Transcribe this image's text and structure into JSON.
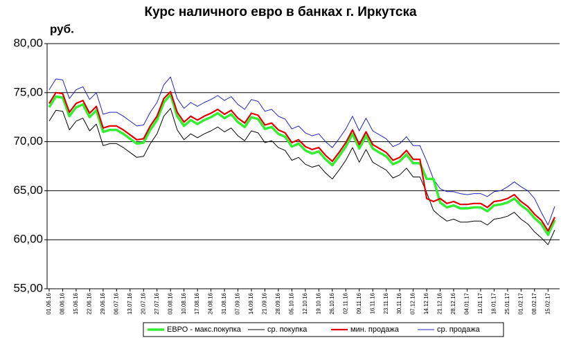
{
  "chart_data": {
    "type": "line",
    "title": "Курс наличного евро в банках г. Иркутска",
    "y_unit": "руб.",
    "categories": [
      "01.06.16",
      null,
      "08.06.16",
      null,
      "15.06.16",
      null,
      "22.06.16",
      null,
      "29.06.16",
      null,
      "06.07.16",
      null,
      "13.07.16",
      null,
      "20.07.16",
      null,
      "27.07.16",
      null,
      "03.08.16",
      null,
      "10.08.16",
      null,
      "17.08.16",
      null,
      "24.08.16",
      null,
      "31.08.16",
      null,
      "07.09.16",
      null,
      "14.09.16",
      null,
      "21.09.16",
      null,
      "28.09.16",
      null,
      "05.10.16",
      null,
      "12.10.16",
      null,
      "19.10.16",
      null,
      "26.10.16",
      null,
      "02.11.16",
      null,
      "09.11.16",
      null,
      "16.11.16",
      null,
      "23.11.16",
      null,
      "30.11.16",
      null,
      "07.12.16",
      null,
      "14.12.16",
      null,
      "21.12.16",
      null,
      "28.12.16",
      null,
      "04.01.17",
      null,
      "11.01.17",
      null,
      "18.01.17",
      null,
      "25.01.17",
      null,
      "01.02.17",
      null,
      "08.02.17",
      null,
      "15.02.17",
      null
    ],
    "series": [
      {
        "name": "ЕВРО - макс.покупка",
        "color": "#33ee33",
        "width": 3.5,
        "values": [
          73.5,
          74.6,
          74.5,
          72.6,
          73.5,
          73.8,
          72.5,
          73.2,
          71.0,
          71.2,
          71.2,
          70.8,
          70.3,
          69.8,
          69.9,
          71.2,
          72.2,
          74.0,
          74.8,
          72.6,
          71.6,
          72.2,
          71.8,
          72.2,
          72.5,
          72.9,
          72.4,
          72.8,
          72.0,
          71.5,
          72.5,
          72.3,
          71.3,
          71.5,
          70.8,
          70.5,
          69.5,
          69.8,
          69.1,
          68.8,
          69.0,
          68.2,
          67.6,
          68.5,
          69.5,
          70.8,
          69.3,
          70.6,
          69.3,
          68.9,
          68.5,
          67.7,
          68.0,
          68.7,
          67.8,
          67.8,
          66.2,
          66.2,
          63.8,
          63.3,
          63.5,
          63.2,
          63.2,
          63.3,
          63.3,
          62.9,
          63.5,
          63.6,
          63.8,
          64.2,
          63.5,
          63.0,
          62.2,
          61.6,
          60.5,
          62.0
        ]
      },
      {
        "name": "ср. покупка",
        "color": "#000000",
        "width": 1,
        "values": [
          72.1,
          73.2,
          73.1,
          71.2,
          72.1,
          72.4,
          71.1,
          71.8,
          69.6,
          69.8,
          69.8,
          69.4,
          68.9,
          68.4,
          68.5,
          69.8,
          70.8,
          72.6,
          73.4,
          71.2,
          70.2,
          70.8,
          70.4,
          70.8,
          71.1,
          71.5,
          71.0,
          71.4,
          70.6,
          70.1,
          71.1,
          70.9,
          69.9,
          70.1,
          69.4,
          69.1,
          68.1,
          68.4,
          67.7,
          67.4,
          67.6,
          66.8,
          66.2,
          67.1,
          68.1,
          69.4,
          67.9,
          69.2,
          67.9,
          67.5,
          67.1,
          66.3,
          66.6,
          67.3,
          66.4,
          66.4,
          64.8,
          63.0,
          62.4,
          61.9,
          62.1,
          61.8,
          61.8,
          61.9,
          61.9,
          61.5,
          62.1,
          62.2,
          62.4,
          62.8,
          62.1,
          61.6,
          60.8,
          60.2,
          59.5,
          61.0
        ]
      },
      {
        "name": "мин. продажа",
        "color": "#e00000",
        "width": 2.2,
        "values": [
          73.9,
          75.0,
          74.9,
          73.0,
          73.9,
          74.2,
          72.9,
          73.6,
          71.4,
          71.6,
          71.6,
          71.2,
          70.7,
          70.2,
          70.3,
          71.6,
          72.6,
          74.4,
          75.1,
          73.0,
          72.0,
          72.6,
          72.2,
          72.6,
          72.9,
          73.3,
          72.8,
          73.2,
          72.4,
          71.9,
          72.9,
          72.7,
          71.7,
          71.9,
          71.2,
          70.9,
          69.9,
          70.2,
          69.5,
          69.2,
          69.4,
          68.6,
          68.0,
          68.9,
          69.9,
          71.2,
          69.7,
          71.0,
          69.7,
          69.3,
          68.9,
          68.1,
          68.4,
          69.1,
          68.2,
          68.2,
          64.2,
          63.9,
          64.2,
          63.7,
          63.9,
          63.6,
          63.6,
          63.7,
          63.7,
          63.3,
          63.9,
          64.0,
          64.2,
          64.6,
          63.9,
          63.4,
          62.6,
          62.0,
          60.9,
          62.3
        ]
      },
      {
        "name": "ср. продажа",
        "color": "#2020c0",
        "width": 1,
        "values": [
          75.3,
          76.4,
          76.3,
          74.4,
          75.3,
          75.6,
          74.3,
          75.0,
          72.8,
          73.0,
          73.0,
          72.6,
          72.1,
          71.6,
          71.7,
          73.0,
          74.0,
          75.8,
          76.6,
          74.4,
          73.4,
          74.0,
          73.6,
          74.0,
          74.3,
          74.7,
          74.2,
          74.6,
          73.8,
          73.3,
          74.3,
          74.1,
          73.1,
          73.3,
          72.6,
          72.3,
          71.3,
          71.6,
          70.9,
          70.6,
          70.8,
          70.0,
          69.4,
          70.3,
          71.3,
          72.6,
          71.1,
          72.4,
          71.1,
          70.7,
          70.3,
          69.5,
          69.8,
          70.5,
          69.6,
          69.6,
          68.0,
          66.2,
          65.2,
          64.9,
          64.9,
          64.7,
          64.6,
          64.7,
          64.7,
          64.4,
          64.9,
          65.0,
          65.4,
          65.9,
          65.4,
          65.0,
          64.2,
          62.8,
          61.5,
          63.4
        ]
      }
    ],
    "ylim": [
      55,
      80
    ],
    "yticks": [
      {
        "value": 55,
        "label": "55,00"
      },
      {
        "value": 60,
        "label": "60,00"
      },
      {
        "value": 65,
        "label": "65,00"
      },
      {
        "value": 70,
        "label": "70,00"
      },
      {
        "value": 75,
        "label": "75,00"
      },
      {
        "value": 80,
        "label": "80,00"
      }
    ],
    "grid": true,
    "legend": "bottom"
  }
}
